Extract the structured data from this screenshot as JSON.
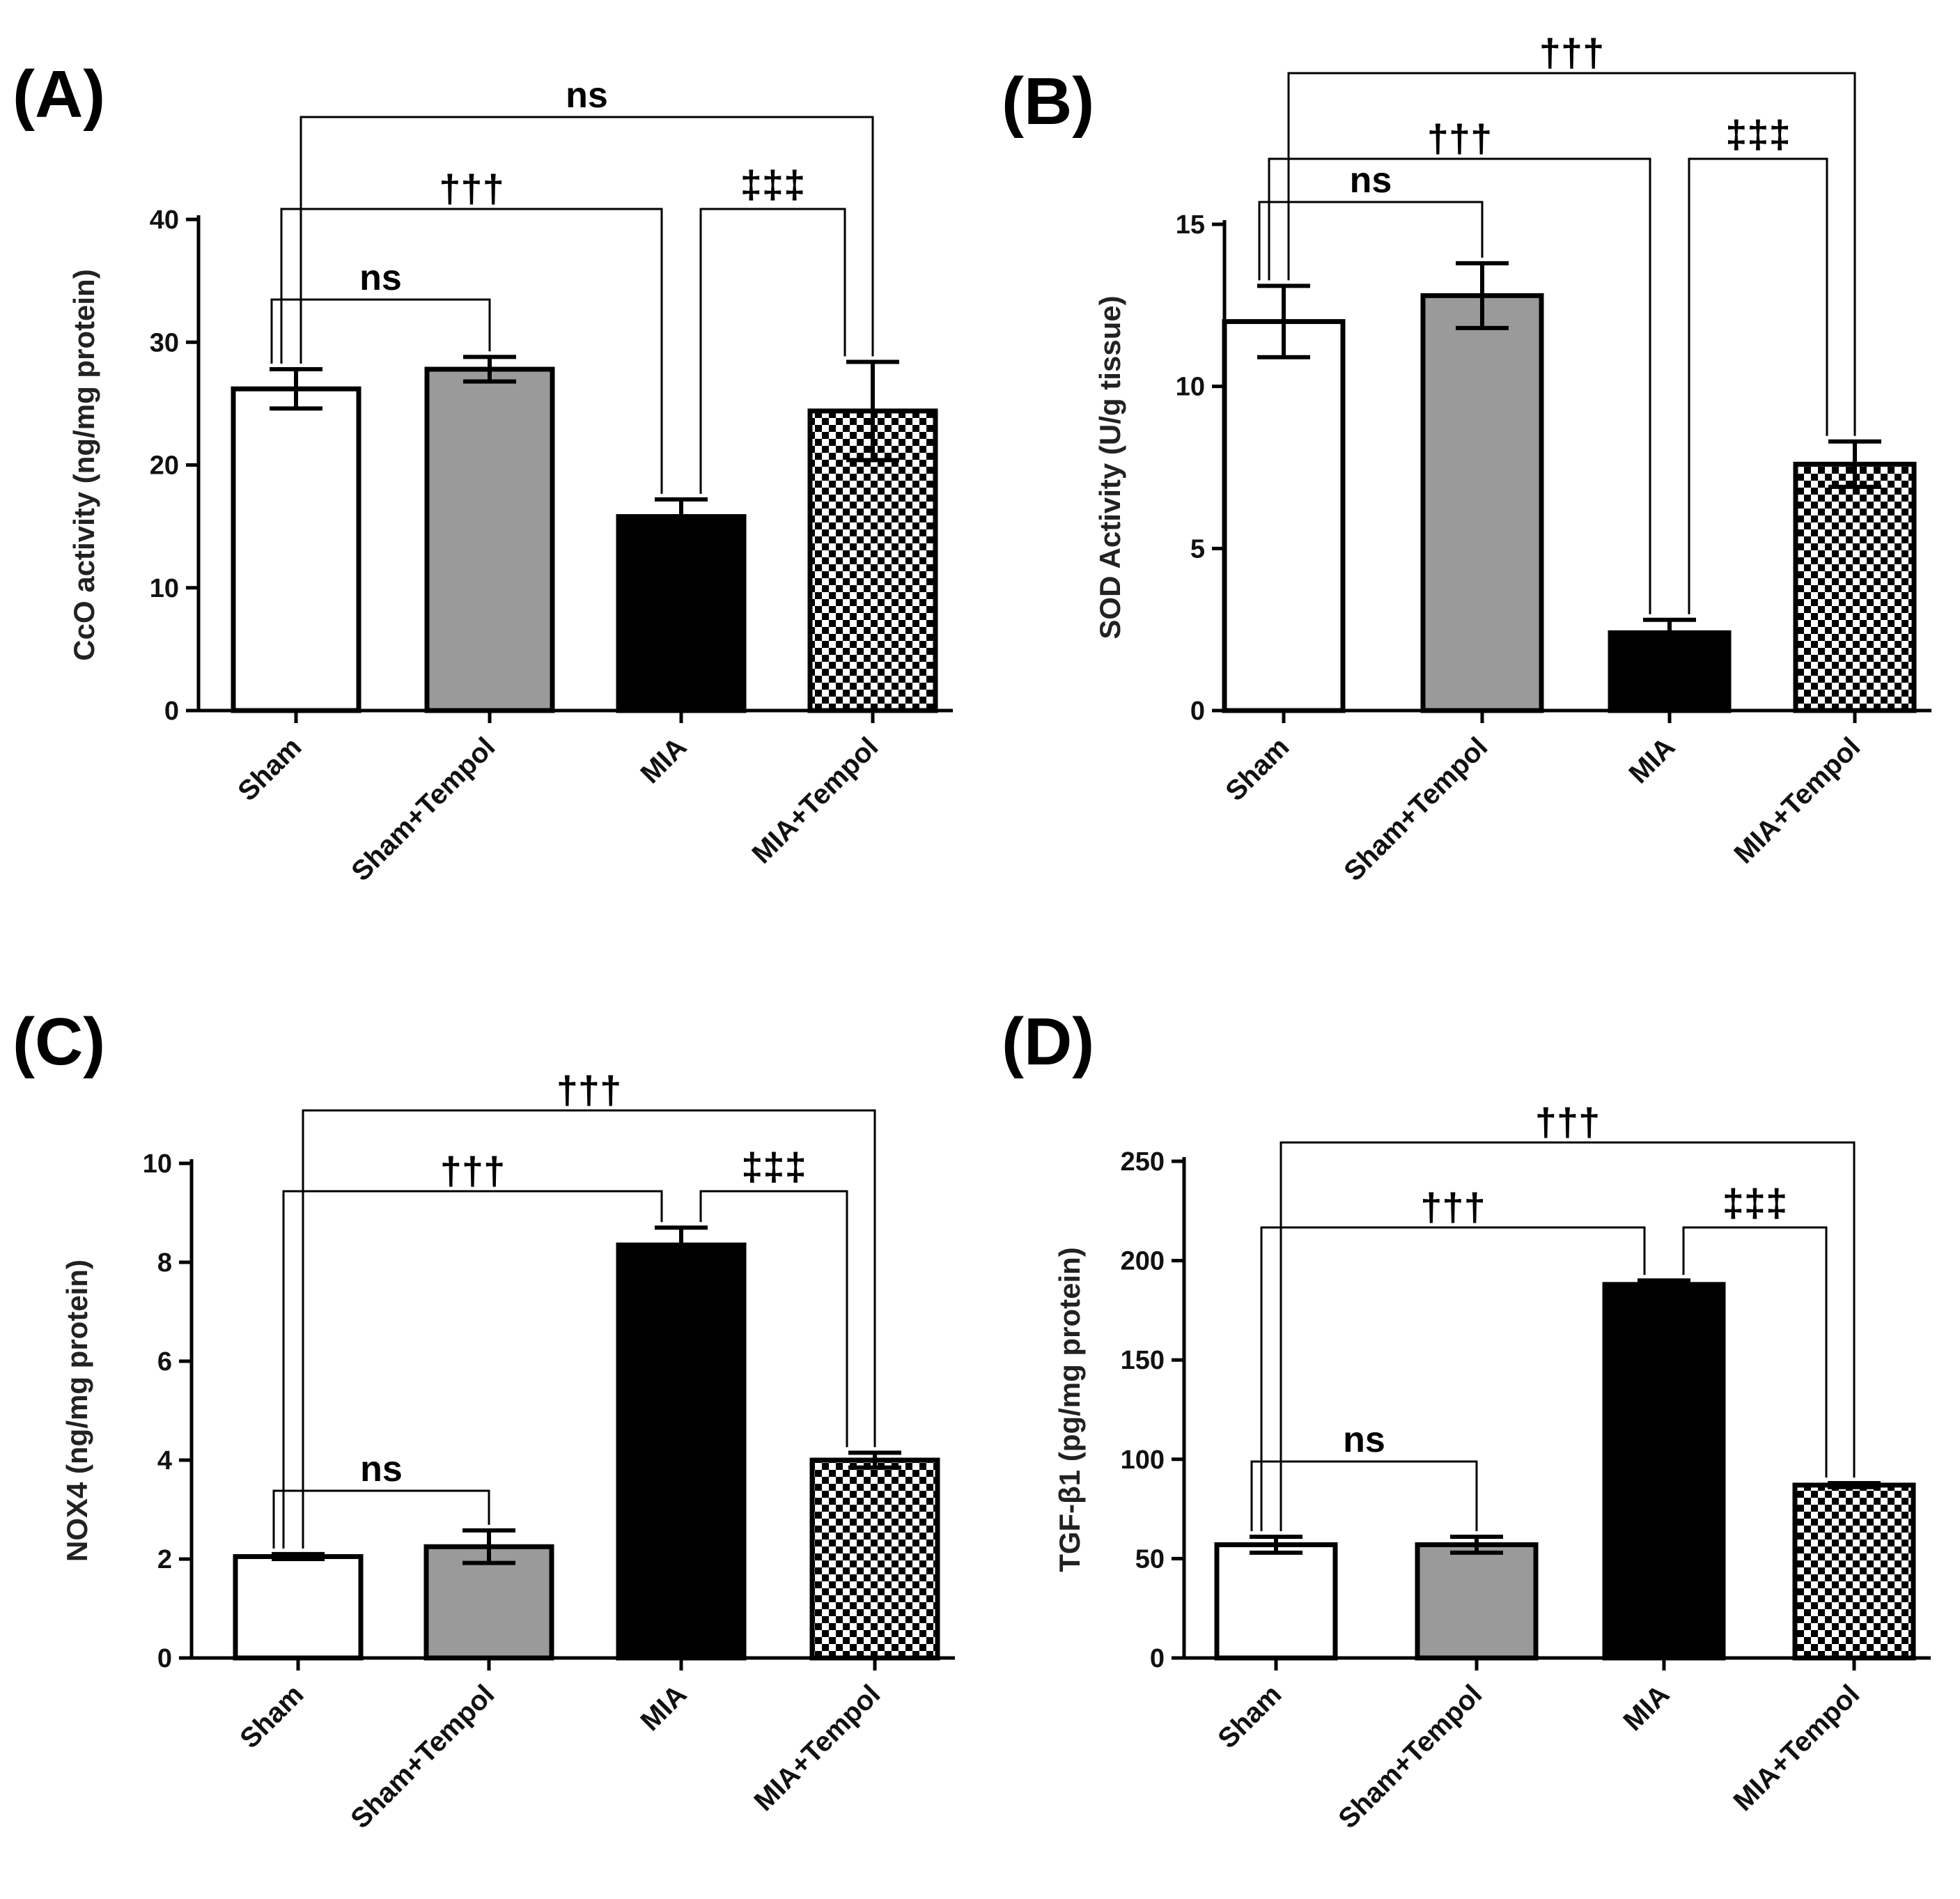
{
  "chart_data": [
    {
      "type": "bar",
      "panel": "(A)",
      "categories": [
        "Sham",
        "Sham+Tempol",
        "MIA",
        "MIA+Tempol"
      ],
      "values": [
        26.2,
        27.8,
        15.8,
        24.4
      ],
      "errors": [
        1.6,
        1.0,
        1.4,
        4.0
      ],
      "ylabel": "CcO activity (ng/mg protein)",
      "ylim": [
        0,
        40
      ],
      "yticks": [
        0,
        10,
        20,
        30,
        40
      ],
      "fills": [
        "white",
        "gray",
        "black",
        "checker"
      ],
      "brackets": [
        {
          "from": 0,
          "to": 1,
          "label": "ns"
        },
        {
          "from": 0,
          "to": 2,
          "label": "†††"
        },
        {
          "from": 2,
          "to": 3,
          "label": "‡‡‡"
        },
        {
          "from": 0,
          "to": 3,
          "label": "ns"
        }
      ]
    },
    {
      "type": "bar",
      "panel": "(B)",
      "categories": [
        "Sham",
        "Sham+Tempol",
        "MIA",
        "MIA+Tempol"
      ],
      "values": [
        12.0,
        12.8,
        2.4,
        7.6
      ],
      "errors": [
        1.1,
        1.0,
        0.4,
        0.7
      ],
      "ylabel": "SOD Activity (U/g tissue)",
      "ylim": [
        0,
        15
      ],
      "yticks": [
        0,
        5,
        10,
        15
      ],
      "fills": [
        "white",
        "gray",
        "black",
        "checker"
      ],
      "brackets": [
        {
          "from": 0,
          "to": 1,
          "label": "ns"
        },
        {
          "from": 0,
          "to": 2,
          "label": "†††"
        },
        {
          "from": 2,
          "to": 3,
          "label": "‡‡‡"
        },
        {
          "from": 0,
          "to": 3,
          "label": "†††"
        }
      ]
    },
    {
      "type": "bar",
      "panel": "(C)",
      "categories": [
        "Sham",
        "Sham+Tempol",
        "MIA",
        "MIA+Tempol"
      ],
      "values": [
        2.05,
        2.25,
        8.35,
        4.0
      ],
      "errors": [
        0.05,
        0.33,
        0.35,
        0.15
      ],
      "ylabel": "NOX4 (ng/mg protein)",
      "ylim": [
        0,
        10
      ],
      "yticks": [
        0,
        2,
        4,
        6,
        8,
        10
      ],
      "fills": [
        "white",
        "gray",
        "black",
        "checker"
      ],
      "brackets": [
        {
          "from": 0,
          "to": 1,
          "label": "ns"
        },
        {
          "from": 0,
          "to": 2,
          "label": "†††"
        },
        {
          "from": 2,
          "to": 3,
          "label": "‡‡‡"
        },
        {
          "from": 0,
          "to": 3,
          "label": "†††"
        }
      ]
    },
    {
      "type": "bar",
      "panel": "(D)",
      "categories": [
        "Sham",
        "Sham+Tempol",
        "MIA",
        "MIA+Tempol"
      ],
      "values": [
        57,
        57,
        188,
        87
      ],
      "errors": [
        4,
        4,
        2,
        1
      ],
      "ylabel": "TGF-β1 (pg/mg protein)",
      "ylim": [
        0,
        250
      ],
      "yticks": [
        0,
        50,
        100,
        150,
        200,
        250
      ],
      "fills": [
        "white",
        "gray",
        "black",
        "checker"
      ],
      "brackets": [
        {
          "from": 0,
          "to": 1,
          "label": "ns"
        },
        {
          "from": 0,
          "to": 2,
          "label": "†††"
        },
        {
          "from": 2,
          "to": 3,
          "label": "‡‡‡"
        },
        {
          "from": 0,
          "to": 3,
          "label": "†††"
        }
      ]
    }
  ]
}
